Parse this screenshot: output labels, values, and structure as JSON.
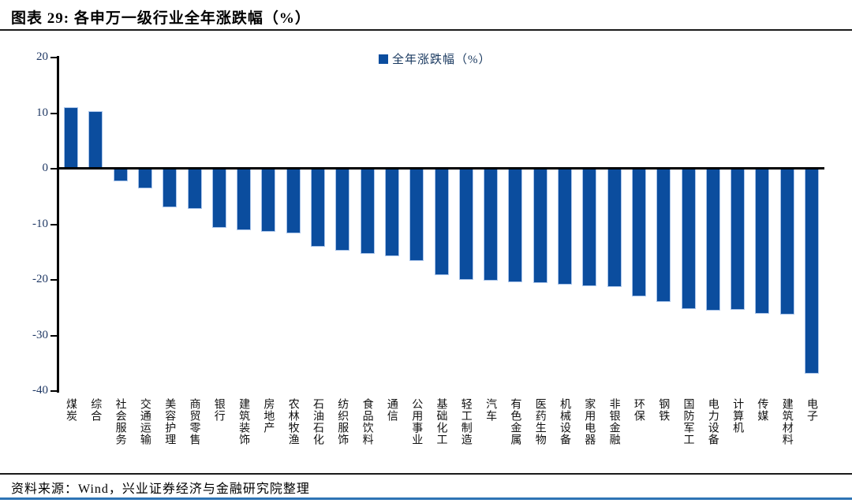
{
  "header": {
    "title": "图表 29: 各申万一级行业全年涨跌幅（%）"
  },
  "footer": {
    "source": "资料来源：Wind，兴业证券经济与金融研究院整理"
  },
  "chart_data": {
    "type": "bar",
    "title": "各申万一级行业全年涨跌幅（%）",
    "legend": "全年涨跌幅（%）",
    "legend_position": "top-center",
    "grid": false,
    "categories": [
      "煤炭",
      "综合",
      "社会服务",
      "交通运输",
      "美容护理",
      "商贸零售",
      "银行",
      "建筑装饰",
      "房地产",
      "农林牧渔",
      "石油石化",
      "纺织服饰",
      "食品饮料",
      "通信",
      "公用事业",
      "基础化工",
      "轻工制造",
      "汽车",
      "有色金属",
      "医药生物",
      "机械设备",
      "家用电器",
      "非银金融",
      "环保",
      "钢铁",
      "国防军工",
      "电力设备",
      "计算机",
      "传媒",
      "建筑材料",
      "电子"
    ],
    "values": [
      11.0,
      10.4,
      -2.3,
      -3.5,
      -7.0,
      -7.3,
      -10.6,
      -11.0,
      -11.3,
      -11.7,
      -14.0,
      -14.7,
      -15.3,
      -15.7,
      -16.6,
      -19.2,
      -20.0,
      -20.2,
      -20.4,
      -20.6,
      -20.8,
      -21.1,
      -21.3,
      -23.0,
      -24.0,
      -25.3,
      -25.5,
      -25.4,
      -26.1,
      -26.3,
      -36.9
    ],
    "xlabel": "",
    "ylabel": "",
    "ylim": [
      -40,
      20
    ],
    "yticks": [
      20,
      10,
      0,
      -10,
      -20,
      -30,
      -40
    ],
    "colors": {
      "bar_fill": "#0B4D9E",
      "bar_border": "#A9C4EA",
      "axis": "#000000",
      "tick_label": "#1F3864",
      "legend_text": "#17375E",
      "bottom_rule": "#2E74B5"
    }
  }
}
